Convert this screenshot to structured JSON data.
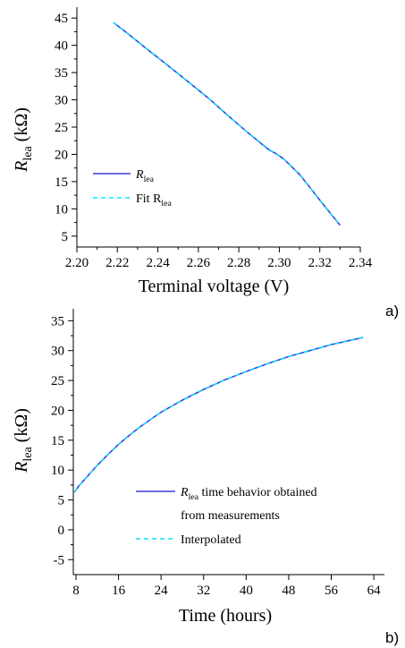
{
  "panels": {
    "a": {
      "letter": "a)"
    },
    "b": {
      "letter": "b)"
    }
  },
  "chart_data": [
    {
      "type": "line",
      "panel": "a",
      "xlabel": "Terminal voltage (V)",
      "ylabel_main": "R",
      "ylabel_sub": "lea",
      "ylabel_unit": " (kΩ)",
      "xlim": [
        2.2,
        2.34
      ],
      "ylim": [
        3,
        47
      ],
      "xticks": [
        2.2,
        2.22,
        2.24,
        2.26,
        2.28,
        2.3,
        2.32,
        2.34
      ],
      "xtick_labels": [
        "2.20",
        "2.22",
        "2.24",
        "2.26",
        "2.28",
        "2.30",
        "2.32",
        "2.34"
      ],
      "yticks": [
        5,
        10,
        15,
        20,
        25,
        30,
        35,
        40,
        45
      ],
      "ytick_labels": [
        "5",
        "10",
        "15",
        "20",
        "25",
        "30",
        "35",
        "40",
        "45"
      ],
      "legend_position": "lower-left",
      "colors": {
        "series1": "#3b3fd9",
        "series2": "#00e5ff"
      },
      "series": [
        {
          "name": "R",
          "name_sub": "lea",
          "style": "solid",
          "x": [
            2.218,
            2.225,
            2.235,
            2.245,
            2.255,
            2.265,
            2.275,
            2.285,
            2.295,
            2.298,
            2.302,
            2.306,
            2.31,
            2.315,
            2.32,
            2.325,
            2.33
          ],
          "y": [
            44.2,
            42.2,
            39.2,
            36.3,
            33.3,
            30.3,
            27.0,
            23.8,
            20.8,
            20.2,
            19.2,
            17.8,
            16.3,
            14.0,
            11.6,
            9.3,
            7.0
          ]
        },
        {
          "name": "Fit R",
          "name_sub": "lea",
          "style": "dashed",
          "x": [
            2.218,
            2.225,
            2.235,
            2.245,
            2.255,
            2.265,
            2.275,
            2.285,
            2.295,
            2.298,
            2.302,
            2.306,
            2.31,
            2.315,
            2.32,
            2.325,
            2.33
          ],
          "y": [
            44.2,
            42.2,
            39.2,
            36.3,
            33.3,
            30.3,
            27.0,
            23.8,
            20.9,
            20.2,
            19.2,
            17.8,
            16.3,
            14.0,
            11.6,
            9.3,
            7.0
          ]
        }
      ]
    },
    {
      "type": "line",
      "panel": "b",
      "xlabel": "Time (hours)",
      "ylabel_main": "R",
      "ylabel_sub": "lea",
      "ylabel_unit": " (kΩ)",
      "xlim": [
        7.5,
        66
      ],
      "ylim": [
        -7.5,
        37
      ],
      "xticks": [
        8,
        16,
        24,
        32,
        40,
        48,
        56,
        64
      ],
      "xtick_labels": [
        "8",
        "16",
        "24",
        "32",
        "40",
        "48",
        "56",
        "64"
      ],
      "yticks": [
        -5,
        0,
        5,
        10,
        15,
        20,
        25,
        30,
        35
      ],
      "ytick_labels": [
        "-5",
        "0",
        "5",
        "10",
        "15",
        "20",
        "25",
        "30",
        "35"
      ],
      "legend_position": "lower-right",
      "colors": {
        "series1": "#3b3fd9",
        "series2": "#00e5ff"
      },
      "series": [
        {
          "name": "R",
          "name_sub": "lea",
          "name_rest": " time behavior obtained",
          "name_line2": "from measurements",
          "style": "solid",
          "x": [
            7.7,
            8.5,
            10,
            12,
            14,
            16,
            18,
            20,
            24,
            28,
            32,
            36,
            40,
            44,
            48,
            52,
            56,
            60,
            62
          ],
          "y": [
            6.3,
            7.3,
            8.8,
            10.8,
            12.6,
            14.3,
            15.8,
            17.2,
            19.7,
            21.7,
            23.5,
            25.1,
            26.5,
            27.8,
            29.0,
            30.0,
            31.0,
            31.8,
            32.2
          ]
        },
        {
          "name": "Interpolated",
          "style": "dashed",
          "x": [
            7.7,
            8.5,
            10,
            12,
            14,
            16,
            18,
            20,
            24,
            28,
            32,
            36,
            40,
            44,
            48,
            52,
            56,
            60,
            62
          ],
          "y": [
            6.3,
            7.3,
            8.8,
            10.8,
            12.6,
            14.3,
            15.8,
            17.2,
            19.7,
            21.7,
            23.5,
            25.1,
            26.5,
            27.8,
            29.0,
            30.0,
            31.0,
            31.8,
            32.2
          ]
        }
      ]
    }
  ]
}
